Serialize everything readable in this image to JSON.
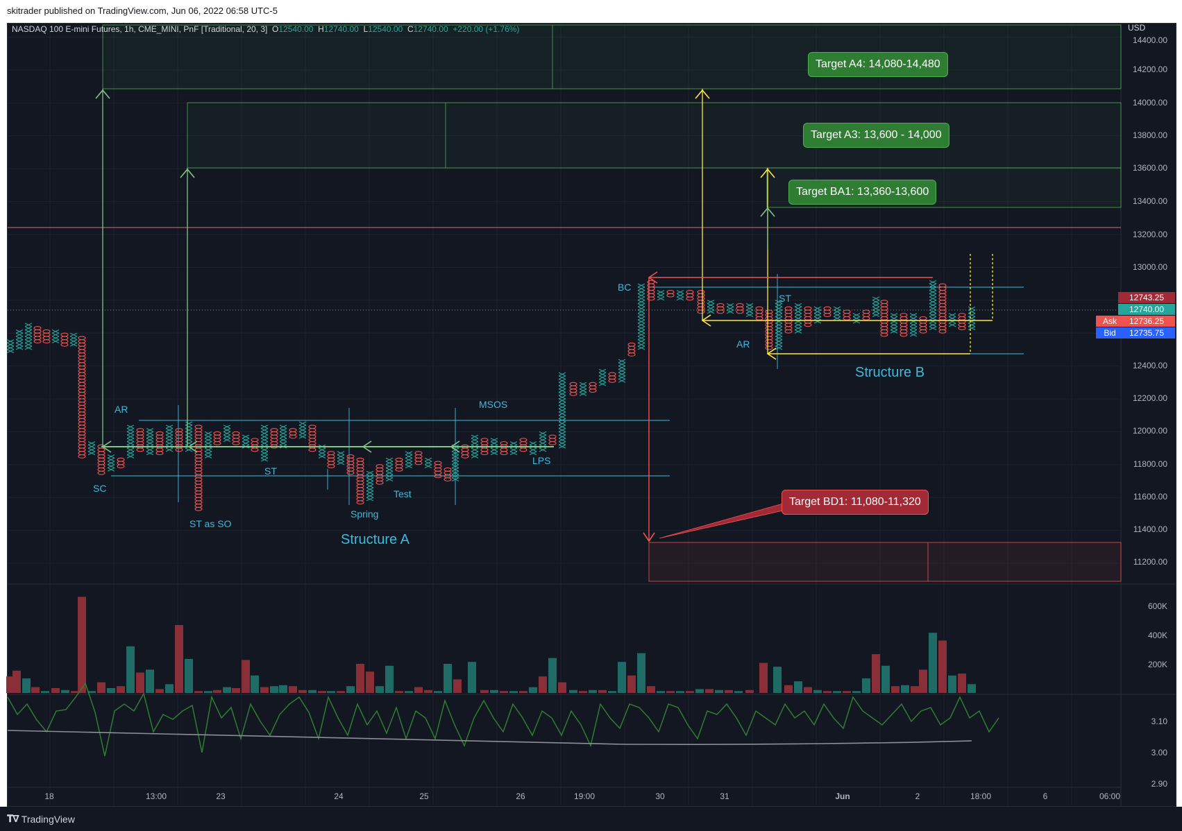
{
  "header": {
    "published": "skitrader published on TradingView.com, Jun 06, 2022 06:58 UTC-5"
  },
  "legend": {
    "title": "NASDAQ 100 E-mini Futures, 1h, CME_MINI, PnF [Traditional, 20, 3]",
    "o_label": "O",
    "o": "12540.00",
    "h_label": "H",
    "h": "12740.00",
    "l_label": "L",
    "l": "12540.00",
    "c_label": "C",
    "c": "12740.00",
    "change": "+220.00 (+1.76%)"
  },
  "currency": "USD",
  "price_axis": [
    "14400.00",
    "14200.00",
    "14000.00",
    "13800.00",
    "13600.00",
    "13400.00",
    "13200.00",
    "13000.00",
    "12400.00",
    "12200.00",
    "12000.00",
    "11800.00",
    "11600.00",
    "11400.00",
    "11200.00"
  ],
  "price_labels": [
    {
      "value": "12743.25",
      "color": "#a12a36"
    },
    {
      "value": "12740.00",
      "color": "#26a69a"
    },
    {
      "value": "12736.25",
      "color": "#ef5350",
      "side": "Ask"
    },
    {
      "value": "12735.75",
      "color": "#2962ff",
      "side": "Bid"
    }
  ],
  "volume_axis": [
    "600K",
    "400K",
    "200K"
  ],
  "osc_axis": [
    "3.10",
    "3.00",
    "2.90"
  ],
  "time_axis": [
    "18",
    "13:00",
    "23",
    "24",
    "25",
    "26",
    "19:00",
    "30",
    "31",
    "Jun",
    "2",
    "18:00",
    "6",
    "06:00"
  ],
  "targets": [
    {
      "text": "Target A4: 14,080-14,480",
      "kind": "g"
    },
    {
      "text": "Target A3: 13,600 - 14,000",
      "kind": "g"
    },
    {
      "text": "Target BA1: 13,360-13,600",
      "kind": "g"
    },
    {
      "text": "Target BD1: 11,080-11,320",
      "kind": "r"
    }
  ],
  "annotations": [
    "AR",
    "SC",
    "ST as SO",
    "ST",
    "Spring",
    "Test",
    "MSOS",
    "LPS",
    "BC",
    "ST",
    "AR",
    "Structure A",
    "Structure B"
  ],
  "footer": {
    "brand": "TradingView"
  },
  "colors": {
    "bg": "#131722",
    "up": "#26a69a",
    "down": "#ef5350",
    "green_line": "#81c784",
    "yellow_line": "#ffeb3b",
    "red_line": "#ef5350",
    "cyan_line": "#3fb9dc"
  }
}
